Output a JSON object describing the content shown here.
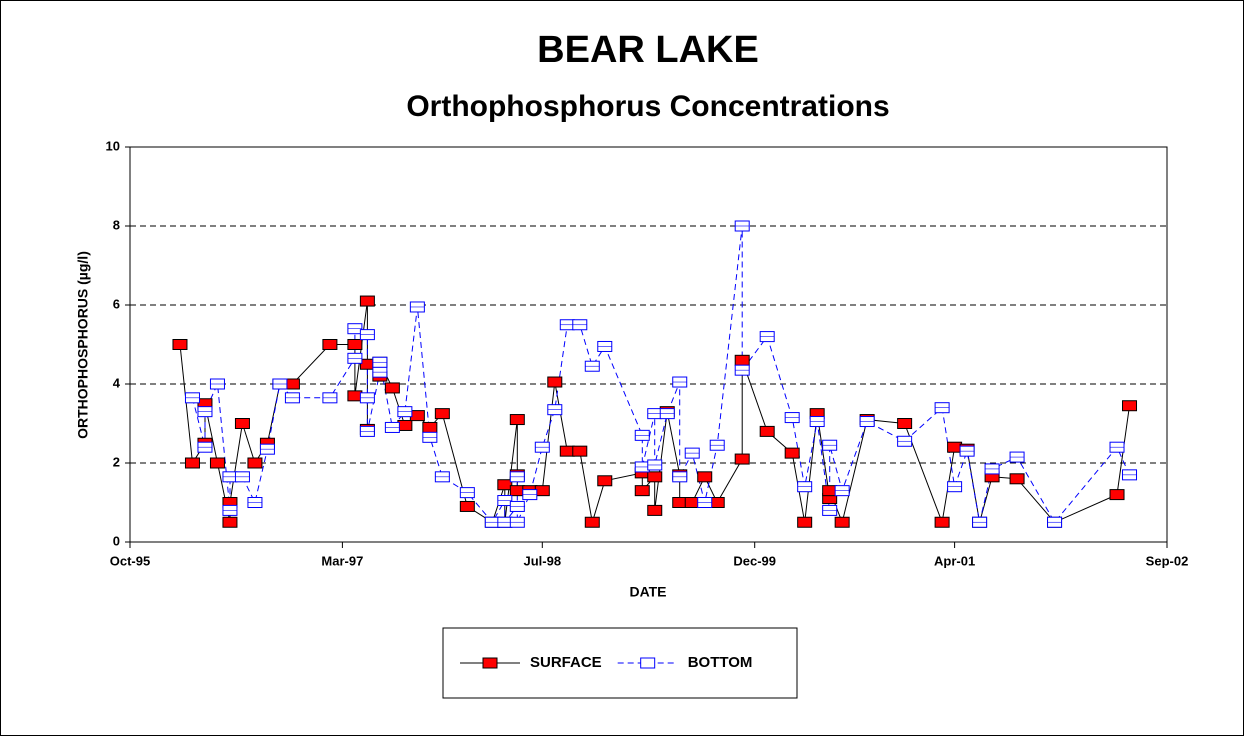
{
  "chart_data": {
    "type": "line",
    "title": "BEAR LAKE",
    "subtitle": "Orthophosphorus Concentrations",
    "x_label": "DATE",
    "y_label": "ORTHOPHOSPHORUS (µg/l)",
    "xlim": [
      "1995-10",
      "2002-09"
    ],
    "xticks": [
      {
        "value": "1995-10",
        "label": "Oct-95"
      },
      {
        "value": "1997-03",
        "label": "Mar-97"
      },
      {
        "value": "1998-07",
        "label": "Jul-98"
      },
      {
        "value": "1999-12",
        "label": "Dec-99"
      },
      {
        "value": "2001-04",
        "label": "Apr-01"
      },
      {
        "value": "2002-09",
        "label": "Sep-02"
      }
    ],
    "ylim": [
      0,
      10
    ],
    "yticks": [
      0,
      2,
      4,
      6,
      8,
      10
    ],
    "grid": true,
    "legend": "bottom",
    "series": [
      {
        "name": "SURFACE",
        "color": "#ff0000",
        "line_color": "#000000",
        "dashed": false,
        "x": [
          "1996-02",
          "1996-03",
          "1996-04",
          "1996-04",
          "1996-05",
          "1996-06",
          "1996-06",
          "1996-07",
          "1996-08",
          "1996-09",
          "1996-10",
          "1996-11",
          "1997-02",
          "1997-04",
          "1997-04",
          "1997-05",
          "1997-05",
          "1997-05",
          "1997-06",
          "1997-06",
          "1997-07",
          "1997-08",
          "1997-09",
          "1997-10",
          "1997-11",
          "1998-01",
          "1998-03",
          "1998-04",
          "1998-04",
          "1998-05",
          "1998-05",
          "1998-05",
          "1998-06",
          "1998-07",
          "1998-08",
          "1998-09",
          "1998-10",
          "1998-11",
          "1998-12",
          "1999-03",
          "1999-03",
          "1999-04",
          "1999-04",
          "1999-05",
          "1999-06",
          "1999-06",
          "1999-07",
          "1999-08",
          "1999-09",
          "1999-11",
          "1999-11",
          "2000-01",
          "2000-03",
          "2000-04",
          "2000-05",
          "2000-06",
          "2000-06",
          "2000-07",
          "2000-09",
          "2000-12",
          "2001-03",
          "2001-04",
          "2001-05",
          "2001-06",
          "2001-07",
          "2001-09",
          "2001-12",
          "2002-05",
          "2002-06"
        ],
        "values": [
          5.0,
          2.0,
          2.5,
          3.5,
          2.0,
          0.5,
          1.0,
          3.0,
          2.0,
          2.5,
          4.0,
          4.0,
          5.0,
          5.0,
          3.7,
          6.1,
          2.85,
          4.5,
          4.2,
          4.55,
          3.9,
          2.95,
          3.2,
          2.9,
          3.25,
          0.9,
          0.5,
          1.45,
          0.5,
          3.1,
          1.7,
          1.3,
          1.3,
          1.3,
          4.05,
          2.3,
          2.3,
          0.5,
          1.55,
          1.75,
          1.3,
          1.65,
          0.8,
          3.3,
          1.7,
          1.0,
          1.0,
          1.65,
          1.0,
          2.1,
          4.6,
          2.8,
          2.25,
          0.5,
          3.25,
          1.1,
          1.3,
          0.5,
          3.1,
          3.0,
          0.5,
          2.4,
          2.35,
          0.5,
          1.65,
          1.6,
          0.5,
          1.2,
          3.45
        ]
      },
      {
        "name": "BOTTOM",
        "color": "#0000ff",
        "line_color": "#0000ff",
        "dashed": true,
        "x": [
          "1996-03",
          "1996-04",
          "1996-04",
          "1996-05",
          "1996-06",
          "1996-06",
          "1996-07",
          "1996-08",
          "1996-09",
          "1996-10",
          "1996-11",
          "1997-02",
          "1997-04",
          "1997-04",
          "1997-05",
          "1997-05",
          "1997-05",
          "1997-06",
          "1997-06",
          "1997-07",
          "1997-08",
          "1997-09",
          "1997-10",
          "1997-11",
          "1998-01",
          "1998-03",
          "1998-04",
          "1998-04",
          "1998-05",
          "1998-05",
          "1998-05",
          "1998-06",
          "1998-07",
          "1998-08",
          "1998-09",
          "1998-10",
          "1998-11",
          "1998-12",
          "1999-03",
          "1999-03",
          "1999-04",
          "1999-04",
          "1999-05",
          "1999-06",
          "1999-06",
          "1999-07",
          "1999-08",
          "1999-09",
          "1999-11",
          "1999-11",
          "2000-01",
          "2000-03",
          "2000-04",
          "2000-05",
          "2000-06",
          "2000-06",
          "2000-07",
          "2000-09",
          "2000-12",
          "2001-03",
          "2001-04",
          "2001-05",
          "2001-06",
          "2001-07",
          "2001-09",
          "2001-12",
          "2002-05",
          "2002-06"
        ],
        "values": [
          3.65,
          2.4,
          3.3,
          4.0,
          0.8,
          1.65,
          1.65,
          1.0,
          2.35,
          4.0,
          3.65,
          3.65,
          4.65,
          5.4,
          5.25,
          3.65,
          2.8,
          4.3,
          4.55,
          2.9,
          3.3,
          5.95,
          2.65,
          1.65,
          1.25,
          0.5,
          1.05,
          0.5,
          0.9,
          1.65,
          0.5,
          1.2,
          2.4,
          3.35,
          5.5,
          5.5,
          4.45,
          4.95,
          2.7,
          1.9,
          3.25,
          1.95,
          3.25,
          4.05,
          1.65,
          2.25,
          1.0,
          2.45,
          8.0,
          4.35,
          5.2,
          3.15,
          1.4,
          3.05,
          0.8,
          2.45,
          1.3,
          3.05,
          2.55,
          3.4,
          1.4,
          2.3,
          0.5,
          1.85,
          2.15,
          0.5,
          2.4,
          1.7
        ]
      }
    ]
  }
}
